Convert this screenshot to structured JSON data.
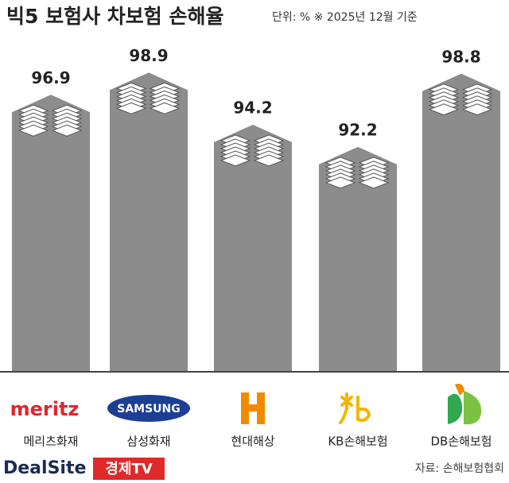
{
  "chart_data": {
    "type": "bar",
    "title": "빅5 보험사 차보험 손해율",
    "subtitle": "단위: %  ※ 2025년 12월 기준",
    "categories": [
      "메리츠화재",
      "삼성화재",
      "현대해상",
      "KB손해보험",
      "DB손해보험"
    ],
    "values": [
      96.9,
      98.9,
      94.2,
      92.2,
      98.8
    ],
    "color": "#8c8c8c",
    "ylim": [
      72,
      100
    ],
    "logos": [
      "meritz",
      "SAMSUNG"
    ],
    "source": "자료: 손해보험협회",
    "brand": "DealSite",
    "brand_tv": "경제TV"
  }
}
